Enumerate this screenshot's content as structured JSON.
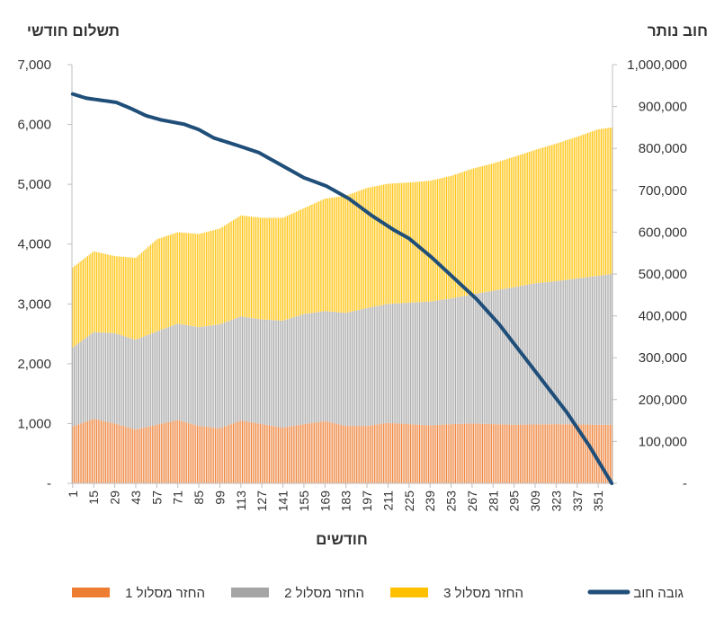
{
  "chart_data": {
    "type": "bar",
    "subtype": "stacked-bar-with-line-on-secondary-axis",
    "left_axis_title": "תשלום חודשי",
    "right_axis_title": "חוב נותר",
    "xlabel": "חודשים",
    "x_tick_labels": [
      "1",
      "15",
      "29",
      "43",
      "57",
      "71",
      "85",
      "99",
      "113",
      "127",
      "141",
      "155",
      "169",
      "183",
      "197",
      "211",
      "225",
      "239",
      "253",
      "267",
      "281",
      "295",
      "309",
      "323",
      "337",
      "351"
    ],
    "left_tick_labels": [
      "-",
      "1,000",
      "2,000",
      "3,000",
      "4,000",
      "5,000",
      "6,000",
      "7,000"
    ],
    "right_tick_labels": [
      "-",
      "100,000",
      "200,000",
      "300,000",
      "400,000",
      "500,000",
      "600,000",
      "700,000",
      "800,000",
      "900,000",
      "1,000,000"
    ],
    "ylim_left": [
      0,
      7000
    ],
    "ylim_right": [
      0,
      1000000
    ],
    "x_range": [
      1,
      360
    ],
    "grid": false,
    "legend_position": "bottom",
    "series": [
      {
        "name": "החזר מסלול 1",
        "kind": "bar",
        "axis": "left",
        "color": "#ED7D31",
        "keypoints": [
          [
            1,
            950
          ],
          [
            15,
            1080
          ],
          [
            29,
            1000
          ],
          [
            43,
            900
          ],
          [
            57,
            980
          ],
          [
            71,
            1060
          ],
          [
            85,
            960
          ],
          [
            99,
            920
          ],
          [
            113,
            1050
          ],
          [
            127,
            990
          ],
          [
            141,
            930
          ],
          [
            155,
            990
          ],
          [
            169,
            1040
          ],
          [
            183,
            960
          ],
          [
            197,
            960
          ],
          [
            211,
            1010
          ],
          [
            225,
            990
          ],
          [
            239,
            970
          ],
          [
            253,
            990
          ],
          [
            267,
            1000
          ],
          [
            281,
            990
          ],
          [
            295,
            980
          ],
          [
            309,
            985
          ],
          [
            323,
            990
          ],
          [
            337,
            985
          ],
          [
            351,
            980
          ],
          [
            360,
            980
          ]
        ]
      },
      {
        "name": "החזר מסלול 2",
        "kind": "bar",
        "axis": "left",
        "color": "#A5A5A5",
        "keypoints": [
          [
            1,
            1320
          ],
          [
            15,
            1450
          ],
          [
            29,
            1510
          ],
          [
            43,
            1500
          ],
          [
            57,
            1560
          ],
          [
            71,
            1610
          ],
          [
            85,
            1650
          ],
          [
            99,
            1740
          ],
          [
            113,
            1740
          ],
          [
            127,
            1750
          ],
          [
            141,
            1790
          ],
          [
            155,
            1840
          ],
          [
            169,
            1840
          ],
          [
            183,
            1890
          ],
          [
            197,
            1970
          ],
          [
            211,
            1990
          ],
          [
            225,
            2030
          ],
          [
            239,
            2070
          ],
          [
            253,
            2100
          ],
          [
            267,
            2160
          ],
          [
            281,
            2230
          ],
          [
            295,
            2300
          ],
          [
            309,
            2360
          ],
          [
            323,
            2390
          ],
          [
            337,
            2440
          ],
          [
            351,
            2490
          ],
          [
            360,
            2520
          ]
        ]
      },
      {
        "name": "החזר מסלול 3",
        "kind": "bar",
        "axis": "left",
        "color": "#FFC000",
        "keypoints": [
          [
            1,
            1340
          ],
          [
            15,
            1350
          ],
          [
            29,
            1290
          ],
          [
            43,
            1370
          ],
          [
            57,
            1540
          ],
          [
            71,
            1530
          ],
          [
            85,
            1560
          ],
          [
            99,
            1600
          ],
          [
            113,
            1690
          ],
          [
            127,
            1700
          ],
          [
            141,
            1720
          ],
          [
            155,
            1770
          ],
          [
            169,
            1880
          ],
          [
            183,
            1960
          ],
          [
            197,
            2010
          ],
          [
            211,
            2010
          ],
          [
            225,
            2010
          ],
          [
            239,
            2020
          ],
          [
            253,
            2050
          ],
          [
            267,
            2100
          ],
          [
            281,
            2130
          ],
          [
            295,
            2180
          ],
          [
            309,
            2230
          ],
          [
            323,
            2300
          ],
          [
            337,
            2370
          ],
          [
            351,
            2450
          ],
          [
            360,
            2450
          ]
        ]
      },
      {
        "name": "גובה חוב",
        "kind": "line",
        "axis": "right",
        "color": "#1F4E79",
        "keypoints": [
          [
            1,
            930000
          ],
          [
            10,
            920000
          ],
          [
            20,
            915000
          ],
          [
            30,
            910000
          ],
          [
            40,
            895000
          ],
          [
            50,
            878000
          ],
          [
            60,
            868000
          ],
          [
            75,
            858000
          ],
          [
            85,
            845000
          ],
          [
            95,
            825000
          ],
          [
            110,
            808000
          ],
          [
            125,
            790000
          ],
          [
            140,
            760000
          ],
          [
            155,
            730000
          ],
          [
            170,
            710000
          ],
          [
            185,
            680000
          ],
          [
            200,
            640000
          ],
          [
            215,
            605000
          ],
          [
            225,
            585000
          ],
          [
            240,
            540000
          ],
          [
            255,
            490000
          ],
          [
            270,
            440000
          ],
          [
            285,
            380000
          ],
          [
            300,
            310000
          ],
          [
            315,
            240000
          ],
          [
            330,
            170000
          ],
          [
            345,
            90000
          ],
          [
            360,
            0
          ]
        ]
      }
    ]
  }
}
